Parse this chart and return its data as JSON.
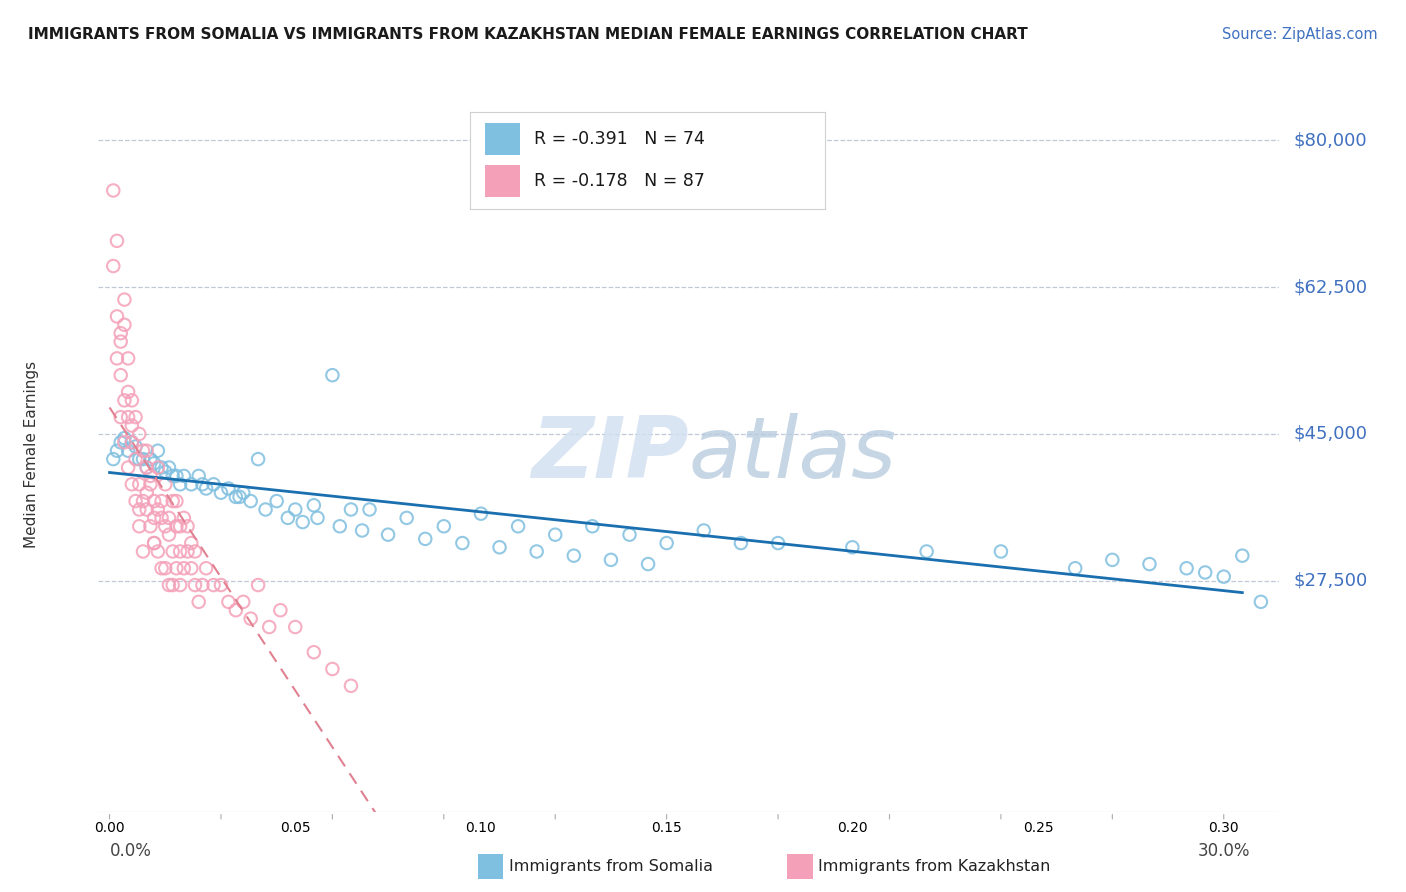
{
  "title": "IMMIGRANTS FROM SOMALIA VS IMMIGRANTS FROM KAZAKHSTAN MEDIAN FEMALE EARNINGS CORRELATION CHART",
  "source": "Source: ZipAtlas.com",
  "ylabel": "Median Female Earnings",
  "ymin": 0,
  "ymax": 85000,
  "xmin": -0.003,
  "xmax": 0.315,
  "watermark_zip": "ZIP",
  "watermark_atlas": "atlas",
  "legend_somalia_r": "R = -0.391",
  "legend_somalia_n": "N = 74",
  "legend_kazakhstan_r": "R = -0.178",
  "legend_kazakhstan_n": "N = 87",
  "somalia_color": "#7fbfdf",
  "kazakhstan_color": "#f4a0b8",
  "somalia_line_color": "#1a6faf",
  "kazakhstan_line_color": "#e08090",
  "ytick_positions": [
    27500,
    45000,
    62500,
    80000
  ],
  "ytick_labels": [
    "$27,500",
    "$45,000",
    "$62,500",
    "$80,000"
  ],
  "somalia_x": [
    0.001,
    0.002,
    0.003,
    0.004,
    0.005,
    0.006,
    0.007,
    0.008,
    0.009,
    0.01,
    0.011,
    0.012,
    0.013,
    0.014,
    0.015,
    0.016,
    0.017,
    0.018,
    0.019,
    0.02,
    0.022,
    0.024,
    0.026,
    0.028,
    0.03,
    0.032,
    0.034,
    0.036,
    0.038,
    0.04,
    0.045,
    0.05,
    0.055,
    0.06,
    0.065,
    0.07,
    0.08,
    0.09,
    0.1,
    0.11,
    0.12,
    0.13,
    0.14,
    0.15,
    0.16,
    0.17,
    0.18,
    0.2,
    0.22,
    0.24,
    0.26,
    0.27,
    0.28,
    0.29,
    0.295,
    0.3,
    0.305,
    0.31,
    0.025,
    0.035,
    0.042,
    0.048,
    0.052,
    0.056,
    0.062,
    0.068,
    0.075,
    0.085,
    0.095,
    0.105,
    0.115,
    0.125,
    0.135,
    0.145
  ],
  "somalia_y": [
    42000,
    43000,
    44000,
    44500,
    43000,
    44000,
    43500,
    42000,
    42000,
    41000,
    42000,
    41500,
    43000,
    41000,
    40500,
    41000,
    40000,
    40000,
    39000,
    40000,
    39000,
    40000,
    38500,
    39000,
    38000,
    38500,
    37500,
    38000,
    37000,
    42000,
    37000,
    36000,
    36500,
    52000,
    36000,
    36000,
    35000,
    34000,
    35500,
    34000,
    33000,
    34000,
    33000,
    32000,
    33500,
    32000,
    32000,
    31500,
    31000,
    31000,
    29000,
    30000,
    29500,
    29000,
    28500,
    28000,
    30500,
    25000,
    39000,
    37500,
    36000,
    35000,
    34500,
    35000,
    34000,
    33500,
    33000,
    32500,
    32000,
    31500,
    31000,
    30500,
    30000,
    29500
  ],
  "kazakhstan_x": [
    0.001,
    0.001,
    0.002,
    0.002,
    0.002,
    0.003,
    0.003,
    0.003,
    0.004,
    0.004,
    0.004,
    0.005,
    0.005,
    0.005,
    0.006,
    0.006,
    0.006,
    0.007,
    0.007,
    0.007,
    0.008,
    0.008,
    0.008,
    0.009,
    0.009,
    0.009,
    0.01,
    0.01,
    0.01,
    0.011,
    0.011,
    0.011,
    0.012,
    0.012,
    0.012,
    0.013,
    0.013,
    0.013,
    0.014,
    0.014,
    0.014,
    0.015,
    0.015,
    0.015,
    0.016,
    0.016,
    0.016,
    0.017,
    0.017,
    0.017,
    0.018,
    0.018,
    0.018,
    0.019,
    0.019,
    0.019,
    0.02,
    0.02,
    0.021,
    0.021,
    0.022,
    0.022,
    0.023,
    0.023,
    0.024,
    0.025,
    0.026,
    0.028,
    0.03,
    0.032,
    0.034,
    0.036,
    0.038,
    0.04,
    0.043,
    0.046,
    0.05,
    0.055,
    0.06,
    0.065,
    0.003,
    0.004,
    0.005,
    0.006,
    0.008,
    0.01,
    0.012
  ],
  "kazakhstan_y": [
    74000,
    65000,
    68000,
    59000,
    54000,
    52000,
    47000,
    57000,
    61000,
    49000,
    44000,
    54000,
    47000,
    41000,
    49000,
    44000,
    39000,
    47000,
    42000,
    37000,
    45000,
    39000,
    34000,
    43000,
    37000,
    31000,
    41000,
    36000,
    43000,
    39000,
    34000,
    40000,
    37000,
    32000,
    35000,
    36000,
    31000,
    41000,
    35000,
    29000,
    37000,
    34000,
    29000,
    39000,
    33000,
    27000,
    35000,
    31000,
    37000,
    27000,
    34000,
    29000,
    37000,
    31000,
    27000,
    34000,
    29000,
    35000,
    31000,
    34000,
    29000,
    32000,
    27000,
    31000,
    25000,
    27000,
    29000,
    27000,
    27000,
    25000,
    24000,
    25000,
    23000,
    27000,
    22000,
    24000,
    22000,
    19000,
    17000,
    15000,
    56000,
    58000,
    50000,
    46000,
    36000,
    38000,
    32000
  ]
}
